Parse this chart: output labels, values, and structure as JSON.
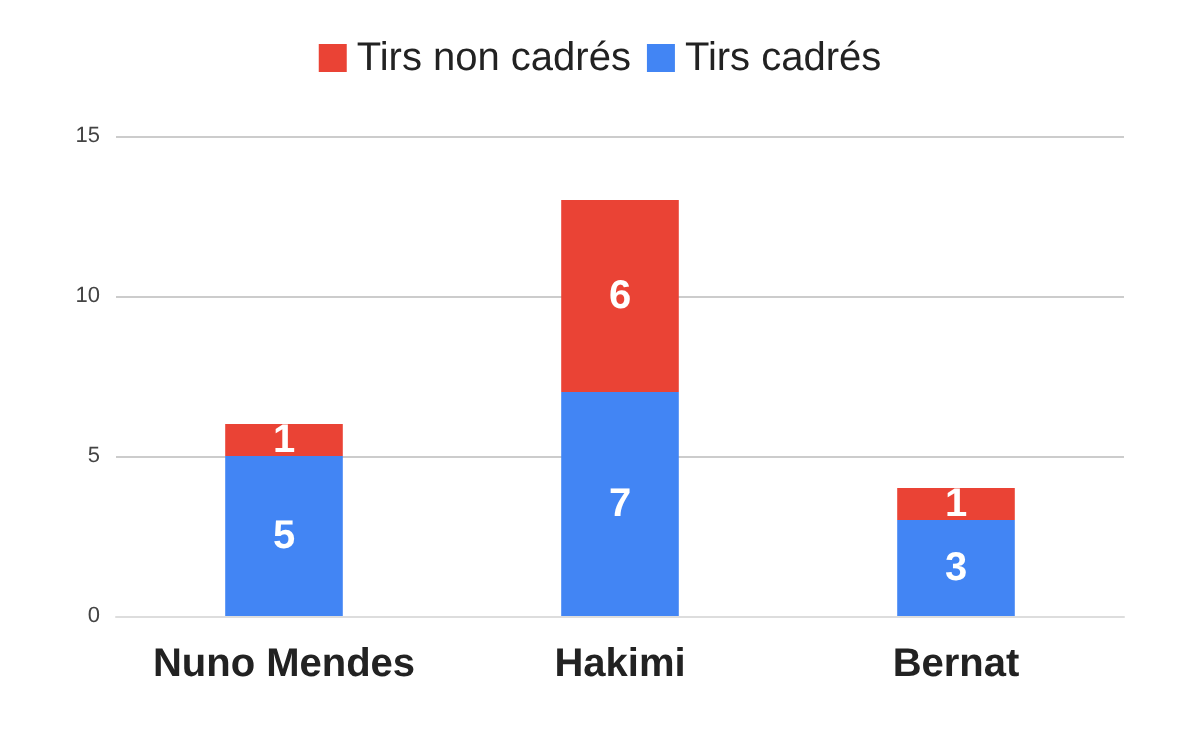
{
  "chart_data": {
    "type": "bar",
    "stacked": true,
    "categories": [
      "Nuno Mendes",
      "Hakimi",
      "Bernat"
    ],
    "series": [
      {
        "name": "Tirs cadrés",
        "color": "#4285f4",
        "values": [
          5,
          7,
          3
        ]
      },
      {
        "name": "Tirs non cadrés",
        "color": "#ea4335",
        "values": [
          1,
          6,
          1
        ]
      }
    ],
    "ylim": [
      0,
      15
    ],
    "yticks": [
      0,
      5,
      10,
      15
    ],
    "grid": "y",
    "legend": "top",
    "data_labels": true
  }
}
